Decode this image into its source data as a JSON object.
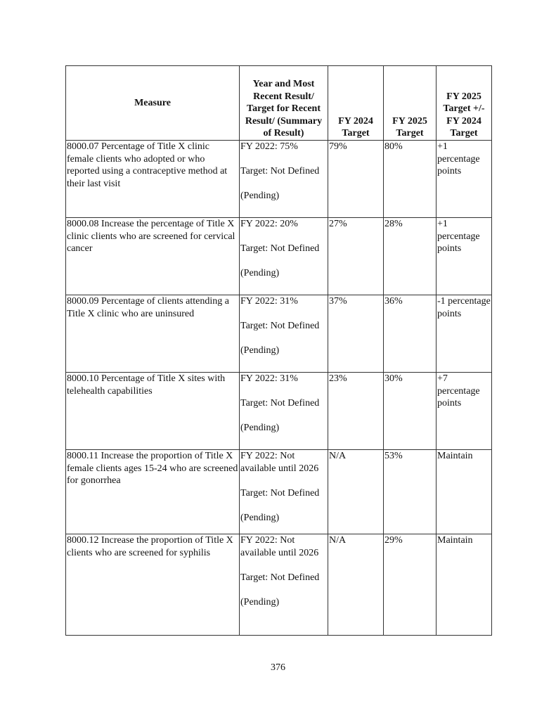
{
  "table": {
    "headers": [
      "Measure",
      "Year and Most Recent Result/ Target for Recent Result/ (Summary of Result)",
      "FY 2024 Target",
      "FY 2025 Target",
      "FY 2025 Target +/- FY 2024 Target"
    ],
    "rows": [
      {
        "measure": "8000.07 Percentage of Title X clinic female clients who adopted or who reported using a contraceptive method at their last visit",
        "result": "FY 2022: 75%\n\nTarget: Not Defined\n\n(Pending)",
        "fy2024": "79%",
        "fy2025": "80%",
        "change": "+1 percentage points"
      },
      {
        "measure": "8000.08 Increase the percentage of Title X clinic clients who are screened for cervical cancer",
        "result": "FY 2022: 20%\n\nTarget: Not Defined\n\n(Pending)",
        "fy2024": "27%",
        "fy2025": "28%",
        "change": "+1 percentage points"
      },
      {
        "measure": "8000.09 Percentage of clients attending a Title X clinic who are uninsured",
        "result": "FY 2022: 31%\n\nTarget: Not Defined\n\n(Pending)",
        "fy2024": "37%",
        "fy2025": "36%",
        "change": "-1 percentage points"
      },
      {
        "measure": "8000.10 Percentage of Title X sites with telehealth capabilities",
        "result": "FY 2022: 31%\n\nTarget: Not Defined\n\n(Pending)",
        "fy2024": "23%",
        "fy2025": "30%",
        "change": "+7 percentage points"
      },
      {
        "measure": "8000.11 Increase the proportion of Title X female clients ages 15-24 who are screened for gonorrhea",
        "result": "FY 2022:  Not available until 2026\n\nTarget: Not Defined\n\n(Pending)",
        "fy2024": "N/A",
        "fy2025": "53%",
        "change": "Maintain"
      },
      {
        "measure": "8000.12 Increase the proportion of Title X clients who are screened for syphilis",
        "result": "FY 2022: Not available until 2026\n\nTarget: Not Defined\n\n(Pending)",
        "fy2024": "N/A",
        "fy2025": "29%",
        "change": "Maintain"
      }
    ]
  },
  "page_number": "376"
}
